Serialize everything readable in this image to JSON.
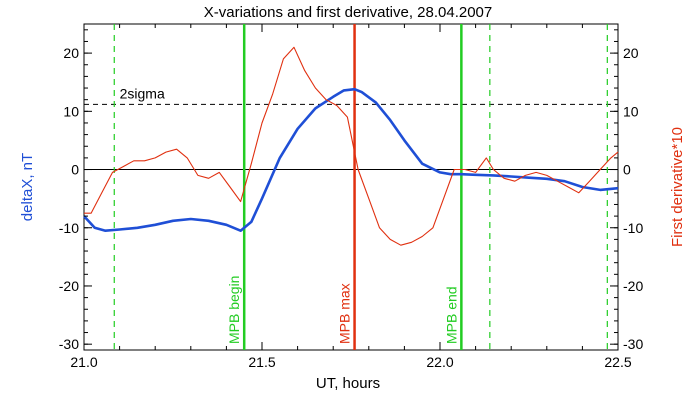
{
  "chart_data": {
    "type": "line",
    "title": "X-variations and first derivative, 28.04.2007",
    "xlabel": "UT, hours",
    "ylabel_left": "deltaX, nT",
    "ylabel_right": "First derivative*10",
    "xlim": [
      21.0,
      22.5
    ],
    "ylim": [
      -31,
      25
    ],
    "x_ticks": [
      21.0,
      21.5,
      22.0,
      22.5
    ],
    "y_ticks": [
      -30,
      -20,
      -10,
      0,
      10,
      20
    ],
    "grid": false,
    "series": [
      {
        "name": "deltaX, nT",
        "color": "#1f4fd6",
        "x": [
          21.0,
          21.03,
          21.06,
          21.1,
          21.15,
          21.2,
          21.25,
          21.3,
          21.35,
          21.4,
          21.44,
          21.47,
          21.5,
          21.55,
          21.6,
          21.65,
          21.7,
          21.73,
          21.76,
          21.78,
          21.82,
          21.86,
          21.9,
          21.95,
          22.0,
          22.03,
          22.06,
          22.1,
          22.15,
          22.2,
          22.25,
          22.3,
          22.35,
          22.4,
          22.45,
          22.5
        ],
        "y": [
          -8,
          -10,
          -10.5,
          -10.3,
          -10,
          -9.5,
          -8.8,
          -8.5,
          -8.8,
          -9.5,
          -10.5,
          -9,
          -5,
          2,
          7,
          10.5,
          12.5,
          13.6,
          13.8,
          13.3,
          11.5,
          8.5,
          5,
          1,
          -0.5,
          -0.8,
          -0.8,
          -0.9,
          -1,
          -1.2,
          -1.4,
          -1.6,
          -2,
          -3,
          -3.5,
          -3.2
        ]
      },
      {
        "name": "First derivative*10",
        "color": "#e03010",
        "x": [
          21.0,
          21.02,
          21.05,
          21.08,
          21.11,
          21.14,
          21.17,
          21.2,
          21.23,
          21.26,
          21.29,
          21.32,
          21.35,
          21.38,
          21.41,
          21.44,
          21.47,
          21.5,
          21.53,
          21.56,
          21.59,
          21.62,
          21.65,
          21.68,
          21.71,
          21.74,
          21.77,
          21.8,
          21.83,
          21.86,
          21.89,
          21.92,
          21.95,
          21.98,
          22.01,
          22.04,
          22.07,
          22.1,
          22.13,
          22.15,
          22.18,
          22.21,
          22.24,
          22.27,
          22.3,
          22.33,
          22.36,
          22.39,
          22.42,
          22.45,
          22.48,
          22.5
        ],
        "y": [
          -7.5,
          -7.5,
          -4,
          -0.5,
          0.5,
          1.5,
          1.5,
          2,
          3,
          3.5,
          2,
          -1,
          -1.5,
          -0.5,
          -3,
          -5.5,
          1,
          8,
          13,
          19,
          21,
          17,
          14,
          12,
          11,
          9,
          0,
          -5,
          -10,
          -12,
          -13,
          -12.5,
          -11.5,
          -10,
          -5,
          0,
          0,
          -0.5,
          2,
          0,
          -1.5,
          -2,
          -1,
          -0.5,
          -1,
          -2,
          -3,
          -4,
          -2,
          0,
          2,
          3
        ]
      }
    ],
    "reference_lines": {
      "zero": 0,
      "sigma_label": "2sigma",
      "sigma_value": 11.2
    },
    "vertical_lines": [
      {
        "x": 21.085,
        "style": "dashed",
        "color": "#22cc22",
        "label": ""
      },
      {
        "x": 21.45,
        "style": "solid",
        "color": "#22cc22",
        "label": "MPB begin"
      },
      {
        "x": 21.76,
        "style": "solid",
        "color": "#e03010",
        "label": "MPB max"
      },
      {
        "x": 22.06,
        "style": "solid",
        "color": "#22cc22",
        "label": "MPB end"
      },
      {
        "x": 22.14,
        "style": "dashed",
        "color": "#22cc22",
        "label": ""
      },
      {
        "x": 22.47,
        "style": "dashed",
        "color": "#22cc22",
        "label": ""
      }
    ],
    "colors": {
      "axis": "#000000",
      "left_label": "#1f4fd6",
      "right_label": "#e03010"
    }
  }
}
